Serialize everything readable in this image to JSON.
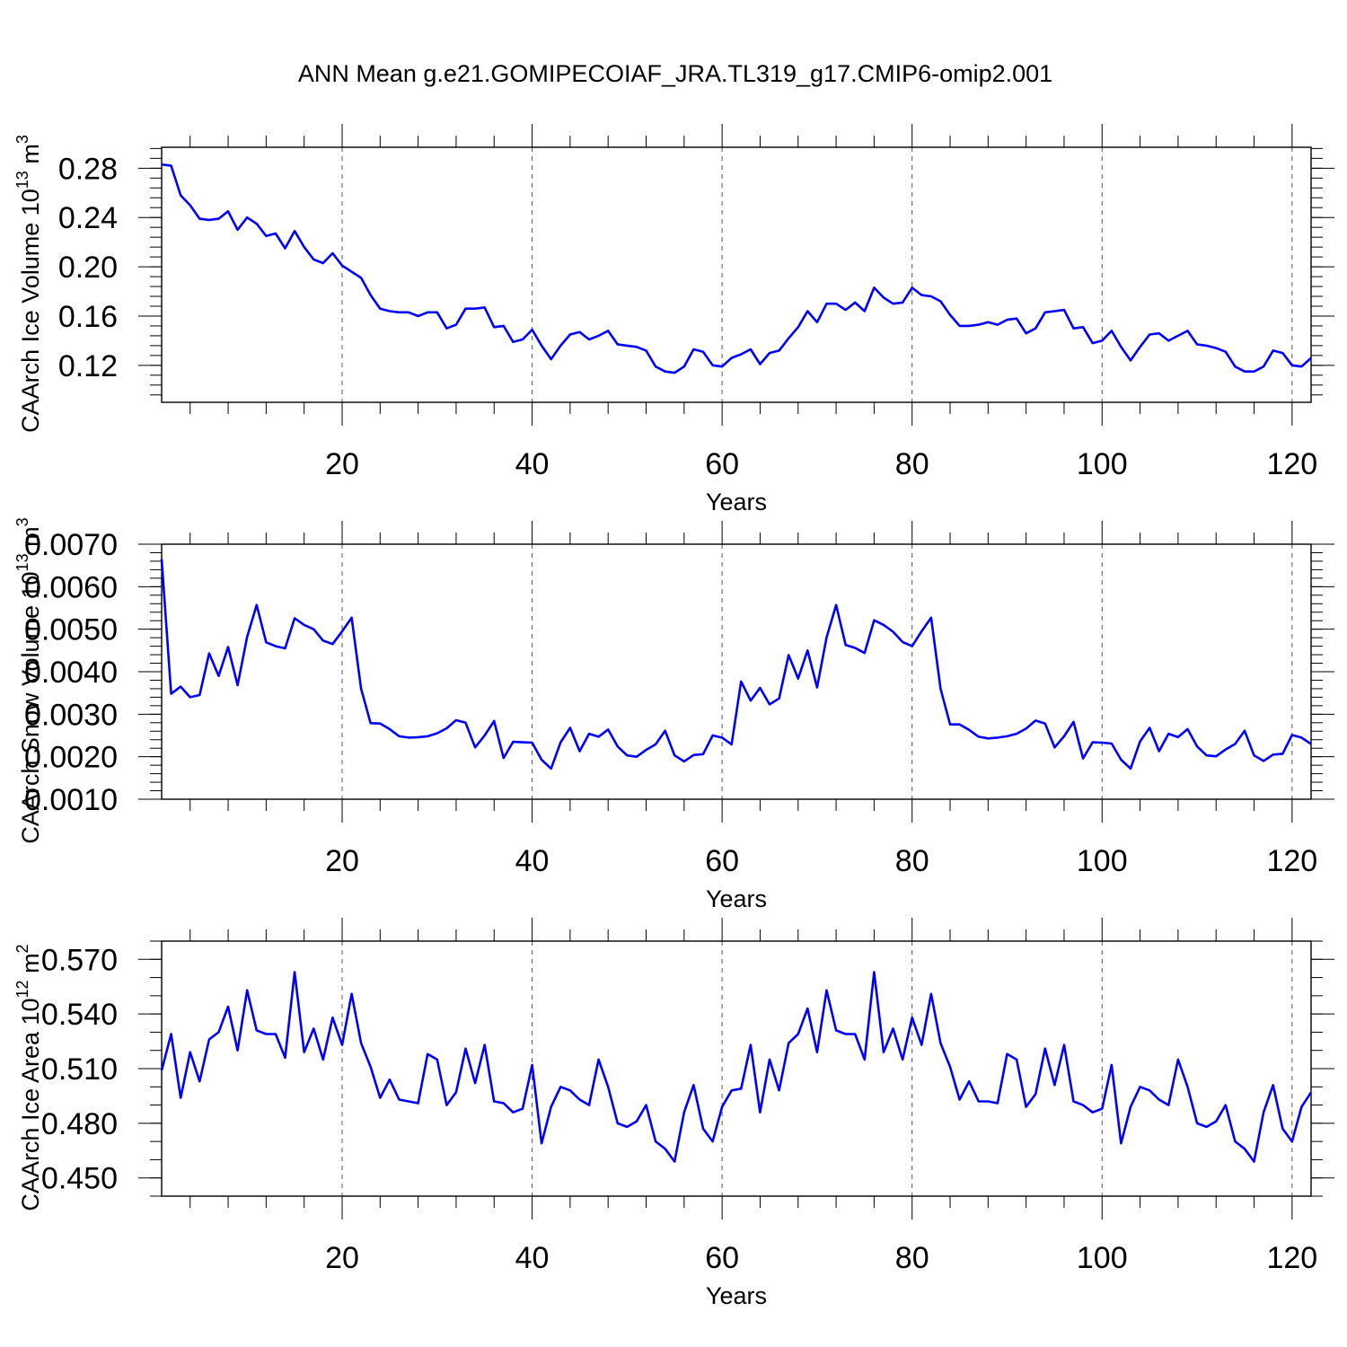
{
  "figure": {
    "title": "ANN Mean g.e21.GOMIPECOIAF_JRA.TL319_g17.CMIP6-omip2.001",
    "line_color": "#0000ff"
  },
  "chart_data": [
    {
      "type": "line",
      "title": "ANN Mean g.e21.GOMIPECOIAF_JRA.TL319_g17.CMIP6-omip2.001",
      "ylabel": "CAArch Ice Volume 10",
      "ylabel_exp": "13",
      "ylabel_unit": " m",
      "ylabel_unit_exp": "3",
      "xlabel": "Years",
      "xlim": [
        1,
        122
      ],
      "ylim": [
        0.09,
        0.297
      ],
      "xticks": [
        20,
        40,
        60,
        80,
        100,
        120
      ],
      "xtick_labels": [
        "20",
        "40",
        "60",
        "80",
        "100",
        "120"
      ],
      "yticks": [
        0.12,
        0.16,
        0.2,
        0.24,
        0.28
      ],
      "ytick_labels": [
        "0.12",
        "0.16",
        "0.20",
        "0.24",
        "0.28"
      ],
      "yminor_step": 0.008,
      "grid": "vertical dashed at major x ticks",
      "x_start": 1,
      "values": [
        0.283,
        0.282,
        0.258,
        0.25,
        0.239,
        0.238,
        0.239,
        0.245,
        0.23,
        0.24,
        0.235,
        0.225,
        0.227,
        0.215,
        0.229,
        0.216,
        0.206,
        0.203,
        0.211,
        0.201,
        0.196,
        0.191,
        0.177,
        0.166,
        0.164,
        0.163,
        0.163,
        0.16,
        0.163,
        0.163,
        0.15,
        0.153,
        0.166,
        0.166,
        0.167,
        0.151,
        0.152,
        0.139,
        0.141,
        0.149,
        0.136,
        0.125,
        0.136,
        0.145,
        0.147,
        0.141,
        0.144,
        0.148,
        0.137,
        0.136,
        0.135,
        0.132,
        0.119,
        0.115,
        0.114,
        0.119,
        0.133,
        0.131,
        0.12,
        0.119,
        0.126,
        0.129,
        0.133,
        0.121,
        0.13,
        0.132,
        0.142,
        0.151,
        0.164,
        0.155,
        0.17,
        0.17,
        0.165,
        0.171,
        0.164,
        0.183,
        0.175,
        0.17,
        0.171,
        0.183,
        0.177,
        0.176,
        0.172,
        0.161,
        0.152,
        0.152,
        0.153,
        0.155,
        0.153,
        0.157,
        0.158,
        0.146,
        0.15,
        0.163,
        0.164,
        0.165,
        0.15,
        0.151,
        0.138,
        0.14,
        0.148,
        0.135,
        0.124,
        0.135,
        0.145,
        0.146,
        0.14,
        0.144,
        0.148,
        0.137,
        0.136,
        0.134,
        0.131,
        0.119,
        0.115,
        0.115,
        0.119,
        0.132,
        0.13,
        0.12,
        0.119,
        0.126
      ]
    },
    {
      "type": "line",
      "ylabel": "CAArch Snow Volume 10",
      "ylabel_exp": "13",
      "ylabel_unit": " m",
      "ylabel_unit_exp": "3",
      "xlabel": "Years",
      "xlim": [
        1,
        122
      ],
      "ylim": [
        0.001,
        0.007
      ],
      "xticks": [
        20,
        40,
        60,
        80,
        100,
        120
      ],
      "xtick_labels": [
        "20",
        "40",
        "60",
        "80",
        "100",
        "120"
      ],
      "yticks": [
        0.001,
        0.002,
        0.003,
        0.004,
        0.005,
        0.006,
        0.007
      ],
      "ytick_labels": [
        "0.0010",
        "0.0020",
        "0.0030",
        "0.0040",
        "0.0050",
        "0.0060",
        "0.0070"
      ],
      "yminor_step": 0.0002,
      "grid": "vertical dashed at major x ticks",
      "x_start": 1,
      "values": [
        0.00665,
        0.00348,
        0.00365,
        0.0034,
        0.00345,
        0.00443,
        0.0039,
        0.00458,
        0.00368,
        0.00482,
        0.00557,
        0.00469,
        0.0046,
        0.00455,
        0.00526,
        0.0051,
        0.005,
        0.00473,
        0.00465,
        0.00495,
        0.00527,
        0.0036,
        0.00279,
        0.00278,
        0.00265,
        0.00248,
        0.00245,
        0.00246,
        0.00248,
        0.00255,
        0.00267,
        0.00286,
        0.0028,
        0.00222,
        0.0025,
        0.00284,
        0.00197,
        0.00235,
        0.00234,
        0.00233,
        0.00193,
        0.00172,
        0.00234,
        0.00268,
        0.00213,
        0.00254,
        0.00247,
        0.00264,
        0.00224,
        0.00203,
        0.002,
        0.00216,
        0.00229,
        0.00261,
        0.00203,
        0.00189,
        0.00204,
        0.00206,
        0.0025,
        0.00245,
        0.00229,
        0.00377,
        0.00332,
        0.00362,
        0.00323,
        0.00337,
        0.00439,
        0.00384,
        0.0045,
        0.00363,
        0.00481,
        0.00557,
        0.00463,
        0.00456,
        0.00444,
        0.00521,
        0.0051,
        0.00494,
        0.0047,
        0.0046,
        0.00495,
        0.00527,
        0.0036,
        0.00276,
        0.00276,
        0.00263,
        0.00247,
        0.00243,
        0.00245,
        0.00248,
        0.00254,
        0.00266,
        0.00285,
        0.00278,
        0.00222,
        0.00248,
        0.00282,
        0.00196,
        0.00234,
        0.00233,
        0.00231,
        0.00193,
        0.00172,
        0.00236,
        0.00268,
        0.00213,
        0.00254,
        0.00246,
        0.00265,
        0.00224,
        0.00203,
        0.00201,
        0.00217,
        0.0023,
        0.00261,
        0.00203,
        0.0019,
        0.00205,
        0.00207,
        0.00251,
        0.00245,
        0.0023
      ]
    },
    {
      "type": "line",
      "ylabel": "CAArch Ice Area 10",
      "ylabel_exp": "12",
      "ylabel_unit": " m",
      "ylabel_unit_exp": "2",
      "xlabel": "Years",
      "xlim": [
        1,
        122
      ],
      "ylim": [
        0.44,
        0.58
      ],
      "xticks": [
        20,
        40,
        60,
        80,
        100,
        120
      ],
      "xtick_labels": [
        "20",
        "40",
        "60",
        "80",
        "100",
        "120"
      ],
      "yticks": [
        0.45,
        0.48,
        0.51,
        0.54,
        0.57
      ],
      "ytick_labels": [
        "0.450",
        "0.480",
        "0.510",
        "0.540",
        "0.570"
      ],
      "yminor_step": 0.01,
      "grid": "vertical dashed at major x ticks",
      "x_start": 1,
      "values": [
        0.509,
        0.529,
        0.494,
        0.519,
        0.503,
        0.526,
        0.53,
        0.544,
        0.52,
        0.553,
        0.531,
        0.529,
        0.529,
        0.516,
        0.563,
        0.519,
        0.532,
        0.515,
        0.538,
        0.523,
        0.551,
        0.524,
        0.511,
        0.494,
        0.504,
        0.493,
        0.492,
        0.491,
        0.518,
        0.515,
        0.49,
        0.497,
        0.521,
        0.502,
        0.523,
        0.492,
        0.491,
        0.486,
        0.488,
        0.512,
        0.469,
        0.489,
        0.5,
        0.498,
        0.493,
        0.49,
        0.515,
        0.5,
        0.48,
        0.478,
        0.481,
        0.49,
        0.47,
        0.466,
        0.459,
        0.486,
        0.501,
        0.477,
        0.47,
        0.489,
        0.498,
        0.499,
        0.523,
        0.486,
        0.515,
        0.498,
        0.524,
        0.529,
        0.543,
        0.519,
        0.553,
        0.531,
        0.529,
        0.529,
        0.515,
        0.563,
        0.519,
        0.532,
        0.515,
        0.538,
        0.523,
        0.551,
        0.524,
        0.511,
        0.493,
        0.503,
        0.492,
        0.492,
        0.491,
        0.518,
        0.515,
        0.489,
        0.496,
        0.521,
        0.501,
        0.523,
        0.492,
        0.49,
        0.486,
        0.488,
        0.512,
        0.469,
        0.489,
        0.5,
        0.498,
        0.493,
        0.49,
        0.515,
        0.5,
        0.48,
        0.478,
        0.481,
        0.49,
        0.47,
        0.466,
        0.459,
        0.486,
        0.501,
        0.477,
        0.47,
        0.489,
        0.497
      ]
    }
  ]
}
